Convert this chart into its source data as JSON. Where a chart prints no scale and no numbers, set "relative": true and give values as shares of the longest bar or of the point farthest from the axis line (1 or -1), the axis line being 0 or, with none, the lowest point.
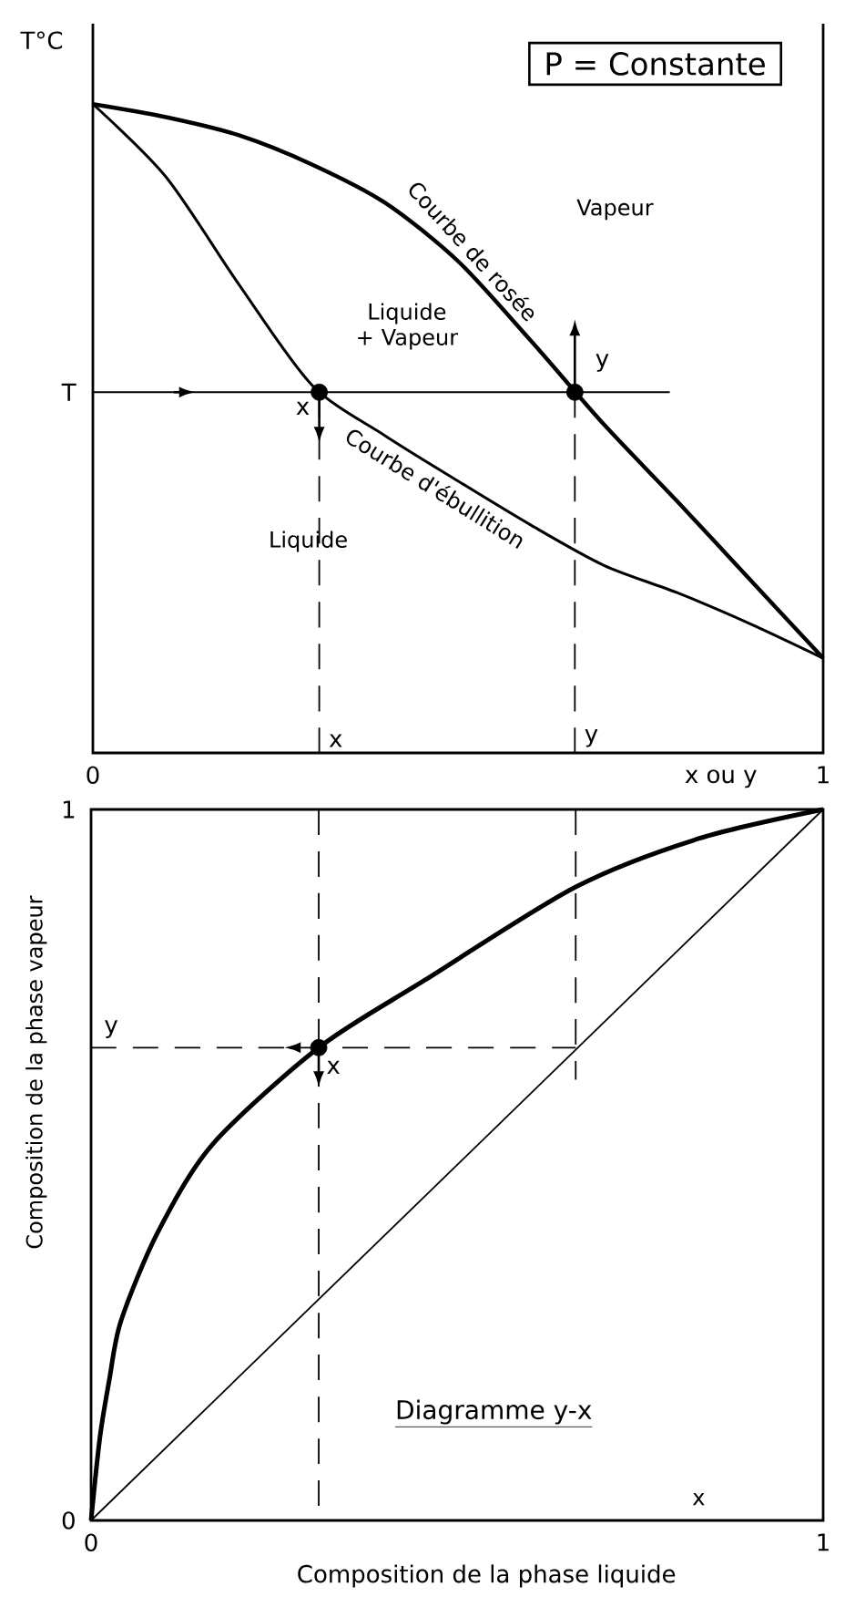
{
  "chart_data": [
    {
      "type": "line",
      "relative": true,
      "ylabel": "T°C",
      "xlabel": "x ou y",
      "xlim": [
        0,
        1
      ],
      "xticks": [
        0,
        1
      ],
      "series": [
        {
          "name": "Courbe de rosée",
          "color": "#000000",
          "x": [
            0,
            0.1,
            0.2,
            0.3,
            0.4,
            0.5,
            0.6,
            0.7,
            0.8,
            0.9,
            1
          ],
          "values": [
            1.0,
            0.98,
            0.952,
            0.907,
            0.848,
            0.758,
            0.635,
            0.506,
            0.388,
            0.267,
            0.146
          ]
        },
        {
          "name": "Courbe d'ébullition",
          "color": "#000000",
          "x": [
            0,
            0.1,
            0.2,
            0.3,
            0.4,
            0.5,
            0.6,
            0.7,
            0.8,
            0.9,
            1
          ],
          "values": [
            1.0,
            0.888,
            0.722,
            0.567,
            0.489,
            0.419,
            0.351,
            0.289,
            0.247,
            0.199,
            0.146
          ]
        },
        {
          "color": "#000000",
          "x": [
            0,
            0.79
          ],
          "values": [
            0.556,
            0.556
          ]
        },
        {
          "color": "#000000",
          "line_style": "dashed",
          "x": [
            0.31,
            0.31
          ],
          "values": [
            0.556,
            0
          ]
        },
        {
          "color": "#000000",
          "line_style": "dashed",
          "x": [
            0.66,
            0.66
          ],
          "values": [
            0.556,
            0
          ]
        },
        {
          "type": "scatter",
          "marker": "circle",
          "color": "#000000",
          "x": [
            0.31,
            0.66
          ],
          "values": [
            0.556,
            0.556
          ]
        }
      ],
      "annotations": [
        "P = Constante",
        "Vapeur",
        "Liquide + Vapeur",
        "Liquide",
        {
          "text": "T",
          "x": 0,
          "y": 0.556
        },
        {
          "text": "x",
          "x": 0.31,
          "y": 0.556
        },
        {
          "text": "y",
          "x": 0.66,
          "y": 0.556
        },
        {
          "text": "x",
          "x": 0.31,
          "y": 0
        },
        {
          "text": "y",
          "x": 0.66,
          "y": 0
        }
      ]
    },
    {
      "type": "line",
      "xlabel": "Composition de la phase liquide",
      "ylabel": "Composition de la phase vapeur",
      "xlim": [
        0,
        1
      ],
      "ylim": [
        0,
        1
      ],
      "xticks": [
        0,
        1
      ],
      "yticks": [
        0,
        1
      ],
      "series": [
        {
          "color": "#000000",
          "x": [
            0,
            0.012,
            0.025,
            0.041,
            0.091,
            0.166,
            0.311,
            0.456,
            0.662,
            0.83,
            1
          ],
          "values": [
            0,
            0.116,
            0.198,
            0.281,
            0.405,
            0.529,
            0.665,
            0.76,
            0.891,
            0.959,
            1
          ]
        },
        {
          "color": "#000000",
          "x": [
            0,
            1
          ],
          "values": [
            0,
            1
          ]
        },
        {
          "color": "#000000",
          "line_style": "dashed",
          "x": [
            0,
            0.662
          ],
          "values": [
            0.665,
            0.665
          ]
        },
        {
          "color": "#000000",
          "line_style": "dashed",
          "x": [
            0.311,
            0.311
          ],
          "values": [
            1,
            0
          ]
        },
        {
          "color": "#000000",
          "line_style": "dashed",
          "x": [
            0.662,
            0.662
          ],
          "values": [
            1,
            0.62
          ]
        },
        {
          "type": "scatter",
          "marker": "circle",
          "color": "#000000",
          "x": [
            0.311
          ],
          "values": [
            0.665
          ]
        }
      ],
      "annotations": [
        "Diagramme y-x",
        "x",
        {
          "text": "y",
          "x": 0,
          "y": 0.665
        },
        {
          "text": "x",
          "x": 0.311,
          "y": 0.665
        }
      ]
    }
  ]
}
